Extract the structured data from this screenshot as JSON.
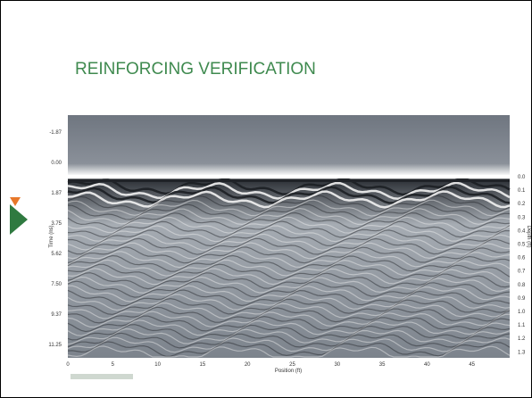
{
  "slide": {
    "title": "REINFORCING VERIFICATION"
  },
  "figure": {
    "y_axis_title": "Time (ns)",
    "x_axis_title": "Position (ft)",
    "y2_axis_title": "Depth (ft)",
    "time_labels": [
      "-1.87",
      "0.00",
      "1.87",
      "3.75",
      "5.62",
      "7.50",
      "9.37",
      "11.25"
    ],
    "depth_labels": [
      "0.0",
      "0.1",
      "0.2",
      "0.3",
      "0.4",
      "0.5",
      "0.6",
      "0.7",
      "0.8",
      "0.9",
      "1.0",
      "1.1",
      "1.2",
      "1.3"
    ],
    "position_labels": [
      "0",
      "5",
      "10",
      "15",
      "20",
      "25",
      "30",
      "35",
      "40",
      "45"
    ]
  }
}
